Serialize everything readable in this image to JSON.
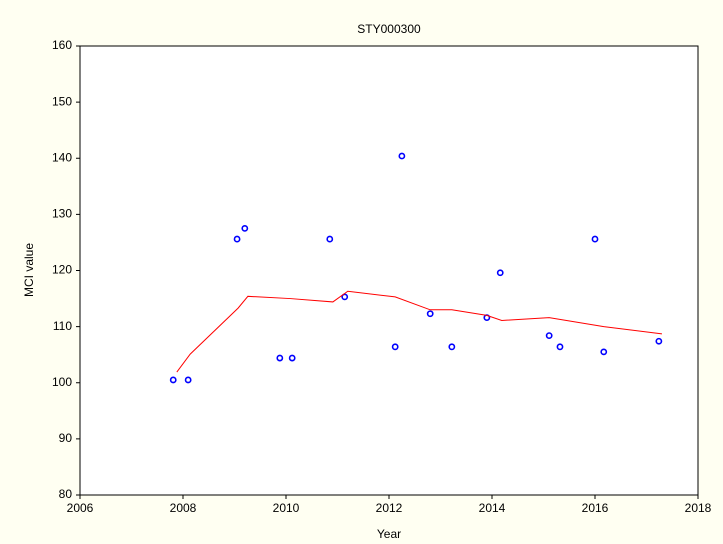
{
  "chart_data": {
    "type": "scatter",
    "title": "STY000300",
    "xlabel": "Year",
    "ylabel": "MCI value",
    "xlim": [
      2006,
      2018
    ],
    "xticks": [
      2006,
      2008,
      2010,
      2012,
      2014,
      2016,
      2018
    ],
    "ylim": [
      80,
      160
    ],
    "yticks": [
      80,
      90,
      100,
      110,
      120,
      130,
      140,
      150,
      160
    ],
    "grid": false,
    "series": [
      {
        "type": "scatter",
        "color": "#0000ff",
        "x": [
          2007.81,
          2008.1,
          2009.05,
          2009.2,
          2009.88,
          2010.12,
          2010.85,
          2011.14,
          2012.12,
          2012.25,
          2012.8,
          2013.22,
          2013.9,
          2014.16,
          2015.11,
          2015.32,
          2016.0,
          2016.17,
          2017.24
        ],
        "values": [
          100.5,
          100.5,
          125.6,
          127.5,
          104.4,
          104.4,
          125.6,
          115.3,
          106.4,
          140.4,
          112.3,
          106.4,
          111.6,
          119.6,
          108.4,
          106.4,
          125.6,
          105.5,
          107.4
        ]
      },
      {
        "type": "line",
        "color": "#ff0000",
        "x": [
          2007.88,
          2008.14,
          2009.07,
          2009.26,
          2010.08,
          2010.91,
          2011.2,
          2012.12,
          2012.8,
          2013.22,
          2013.9,
          2014.19,
          2015.11,
          2016.17,
          2017.3
        ],
        "values": [
          101.9,
          105.1,
          113.3,
          115.4,
          115.0,
          114.4,
          116.3,
          115.3,
          113.0,
          113.0,
          112.0,
          111.1,
          111.6,
          110.0,
          108.7
        ]
      }
    ]
  }
}
